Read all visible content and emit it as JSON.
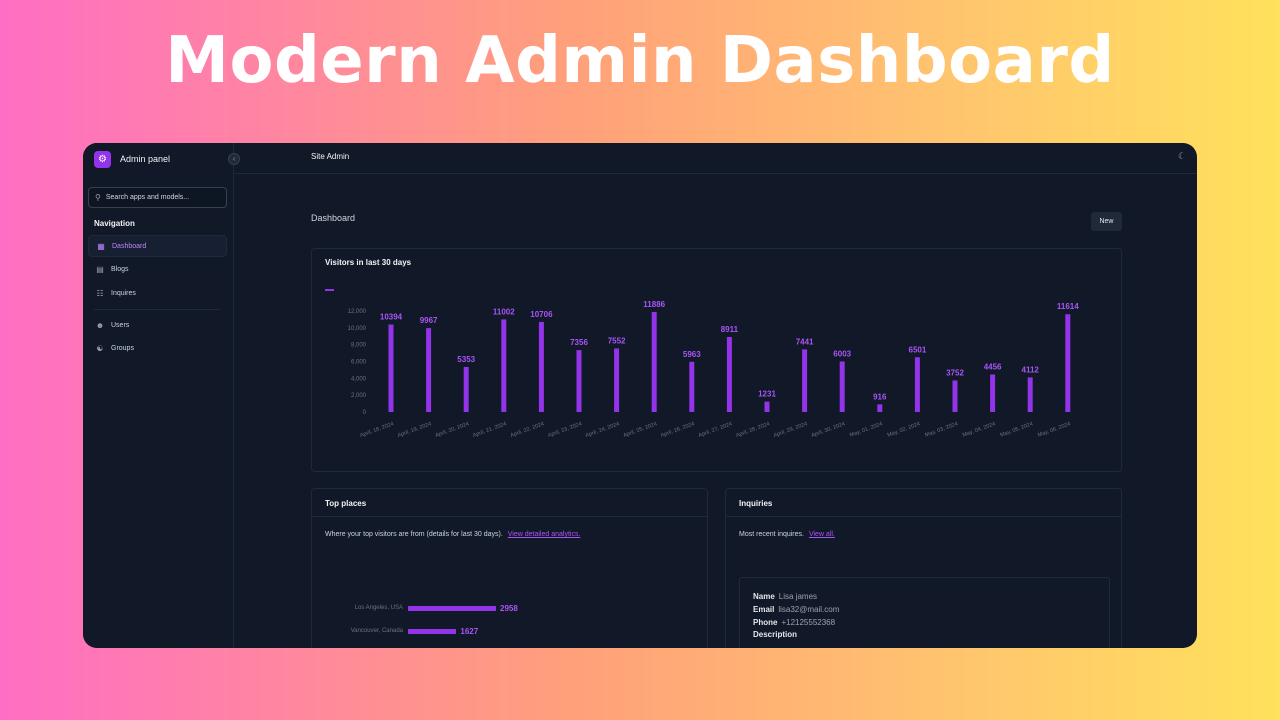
{
  "hero": {
    "title": "Modern Admin Dashboard"
  },
  "sidebar": {
    "brand": "Admin panel",
    "search_placeholder": "Search apps and models...",
    "nav_title": "Navigation",
    "items": [
      {
        "label": "Dashboard",
        "icon": "dashboard-icon",
        "active": true
      },
      {
        "label": "Blogs",
        "icon": "blog-icon",
        "active": false
      },
      {
        "label": "Inquires",
        "icon": "inquiry-icon",
        "active": false
      },
      {
        "label": "Users",
        "icon": "user-icon",
        "active": false
      },
      {
        "label": "Groups",
        "icon": "group-icon",
        "active": false
      }
    ]
  },
  "topbar": {
    "site_title": "Site Admin",
    "icons": [
      "moon-icon",
      "user-icon"
    ]
  },
  "page": {
    "title": "Dashboard",
    "new_label": "New"
  },
  "colors": {
    "accent": "#9333ea",
    "background": "#111827",
    "border": "#1f2937"
  },
  "chart_card": {
    "title": "Visitors in last 30 days"
  },
  "chart_data": {
    "type": "bar",
    "categories": [
      "April, 18, 2024",
      "April, 19, 2024",
      "April, 20, 2024",
      "April, 21, 2024",
      "April, 22, 2024",
      "April, 23, 2024",
      "April, 24, 2024",
      "April, 25, 2024",
      "April, 26, 2024",
      "April, 27, 2024",
      "April, 28, 2024",
      "April, 29, 2024",
      "April, 30, 2024",
      "May, 01, 2024",
      "May, 02, 2024",
      "May, 03, 2024",
      "May, 04, 2024",
      "May, 05, 2024",
      "May, 06, 2024"
    ],
    "values": [
      10394,
      9967,
      5353,
      11002,
      10706,
      7356,
      7552,
      11886,
      5963,
      8911,
      1231,
      7441,
      6003,
      916,
      6501,
      3752,
      4456,
      4112,
      11614
    ],
    "yticks": [
      "0",
      "2,000",
      "4,000",
      "6,000",
      "8,000",
      "10,000",
      "12,000"
    ],
    "ylim": [
      0,
      12000
    ],
    "grid": false,
    "data_labels": true
  },
  "places": {
    "title": "Top places",
    "desc": "Where your top visitors are from (details for last 30 days).",
    "link": "View detailed analytics.",
    "items": [
      {
        "label": "Los Angeles, USA",
        "value": 2958
      },
      {
        "label": "Vancouver, Canada",
        "value": 1627
      }
    ]
  },
  "inquiries": {
    "title": "Inquiries",
    "desc": "Most recent inquires.",
    "link": "View all.",
    "item": {
      "name_label": "Name",
      "name": "Lisa james",
      "email_label": "Email",
      "email": "lisa32@mail.com",
      "phone_label": "Phone",
      "phone": "+12125552368",
      "desc_label": "Description"
    }
  }
}
